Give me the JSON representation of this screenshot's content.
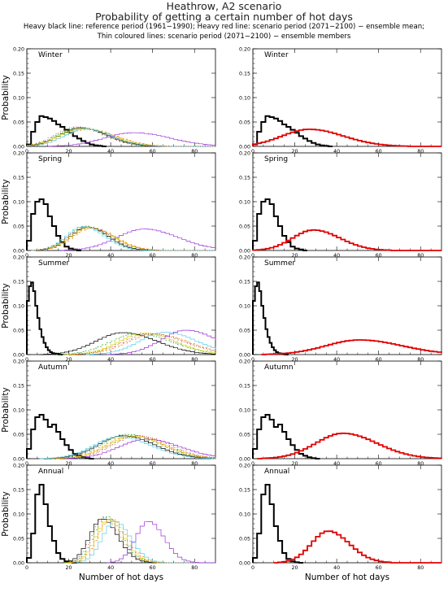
{
  "figure": {
    "site": "Heathrow, A2 scenario",
    "title": "Probability of getting a certain number of hot days",
    "note_line1": "Heavy black line: reference period (1961−1990); Heavy red line: scenario period (2071−2100) − ensemble mean;",
    "note_line2": "Thin coloured lines: scenario period (2071−2100) − ensemble members",
    "ylabel": "Probability",
    "xlabel": "Number of hot days",
    "xlim": [
      0,
      90
    ],
    "ylim": [
      0,
      0.2
    ],
    "xticks": [
      "0",
      "20",
      "40",
      "60",
      "80"
    ],
    "yticks": [
      "0.00",
      "0.05",
      "0.10",
      "0.15",
      "0.20"
    ],
    "member_colors": [
      "#000000",
      "#2ca02c",
      "#d4d400",
      "#ff7f0e",
      "#5ccfe6",
      "#8b1a1a",
      "#9b30d9"
    ],
    "reference_color": "#000000",
    "scenario_mean_color": "#e00000"
  },
  "chart_data": [
    {
      "type": "line",
      "panel": "winter-members",
      "label": "Winter",
      "series": [
        {
          "kind": "reference",
          "x": [
            0,
            2,
            4,
            6,
            8,
            10,
            12,
            14,
            16,
            18,
            20,
            22,
            24,
            26,
            28,
            30,
            32,
            34,
            36
          ],
          "y": [
            0.004,
            0.03,
            0.05,
            0.062,
            0.06,
            0.057,
            0.052,
            0.045,
            0.04,
            0.034,
            0.028,
            0.021,
            0.016,
            0.011,
            0.007,
            0.004,
            0.002,
            0.001,
            0
          ]
        },
        {
          "kind": "member",
          "peak": 25,
          "width": 10,
          "height": 0.038
        },
        {
          "kind": "member",
          "peak": 24,
          "width": 10,
          "height": 0.039
        },
        {
          "kind": "member",
          "peak": 26,
          "width": 11,
          "height": 0.037
        },
        {
          "kind": "member",
          "peak": 28,
          "width": 11,
          "height": 0.035
        },
        {
          "kind": "member",
          "peak": 27,
          "width": 10,
          "height": 0.036
        },
        {
          "kind": "member",
          "peak": 23,
          "width": 10,
          "height": 0.04
        },
        {
          "kind": "member",
          "peak": 50,
          "width": 14,
          "height": 0.028
        }
      ]
    },
    {
      "type": "line",
      "panel": "winter-mean",
      "label": "Winter",
      "series": [
        {
          "kind": "reference",
          "x": [
            0,
            2,
            4,
            6,
            8,
            10,
            12,
            14,
            16,
            18,
            20,
            22,
            24,
            26,
            28,
            30,
            32,
            34,
            36
          ],
          "y": [
            0.004,
            0.03,
            0.05,
            0.062,
            0.06,
            0.057,
            0.052,
            0.045,
            0.04,
            0.034,
            0.028,
            0.021,
            0.016,
            0.011,
            0.007,
            0.004,
            0.002,
            0.001,
            0
          ]
        },
        {
          "kind": "mean",
          "peak": 26,
          "width": 13,
          "height": 0.035
        }
      ]
    },
    {
      "type": "line",
      "panel": "spring-members",
      "label": "Spring",
      "series": [
        {
          "kind": "reference",
          "x": [
            0,
            2,
            4,
            6,
            8,
            10,
            12,
            14,
            16,
            18,
            20,
            22,
            24
          ],
          "y": [
            0.02,
            0.075,
            0.1,
            0.105,
            0.095,
            0.07,
            0.05,
            0.03,
            0.017,
            0.008,
            0.004,
            0.002,
            0
          ]
        },
        {
          "kind": "member",
          "peak": 28,
          "width": 8,
          "height": 0.048
        },
        {
          "kind": "member",
          "peak": 27,
          "width": 8,
          "height": 0.05
        },
        {
          "kind": "member",
          "peak": 29,
          "width": 9,
          "height": 0.047
        },
        {
          "kind": "member",
          "peak": 30,
          "width": 9,
          "height": 0.046
        },
        {
          "kind": "member",
          "peak": 26,
          "width": 8,
          "height": 0.049
        },
        {
          "kind": "member",
          "peak": 28,
          "width": 9,
          "height": 0.048
        },
        {
          "kind": "member",
          "peak": 55,
          "width": 13,
          "height": 0.044
        }
      ]
    },
    {
      "type": "line",
      "panel": "spring-mean",
      "label": "Spring",
      "series": [
        {
          "kind": "reference",
          "x": [
            0,
            2,
            4,
            6,
            8,
            10,
            12,
            14,
            16,
            18,
            20,
            22,
            24
          ],
          "y": [
            0.02,
            0.075,
            0.1,
            0.105,
            0.095,
            0.07,
            0.05,
            0.03,
            0.017,
            0.008,
            0.004,
            0.002,
            0
          ]
        },
        {
          "kind": "mean",
          "peak": 28,
          "width": 10,
          "height": 0.042
        }
      ]
    },
    {
      "type": "line",
      "panel": "summer-members",
      "label": "Summer",
      "series": [
        {
          "kind": "reference",
          "x": [
            0,
            1,
            2,
            3,
            4,
            5,
            6,
            7,
            8,
            9,
            10,
            11,
            12,
            13,
            14,
            15,
            16
          ],
          "y": [
            0.11,
            0.14,
            0.148,
            0.13,
            0.1,
            0.075,
            0.052,
            0.036,
            0.024,
            0.015,
            0.009,
            0.005,
            0.003,
            0.002,
            0.001,
            0.0005,
            0
          ]
        },
        {
          "kind": "member",
          "peak": 45,
          "width": 13,
          "height": 0.045
        },
        {
          "kind": "member",
          "peak": 52,
          "width": 13,
          "height": 0.043
        },
        {
          "kind": "member",
          "peak": 55,
          "width": 12,
          "height": 0.044
        },
        {
          "kind": "member",
          "peak": 60,
          "width": 13,
          "height": 0.042
        },
        {
          "kind": "member",
          "peak": 65,
          "width": 12,
          "height": 0.046
        },
        {
          "kind": "member",
          "peak": 58,
          "width": 13,
          "height": 0.043
        },
        {
          "kind": "member",
          "peak": 75,
          "width": 12,
          "height": 0.05
        }
      ]
    },
    {
      "type": "line",
      "panel": "summer-mean",
      "label": "Summer",
      "series": [
        {
          "kind": "reference",
          "x": [
            0,
            1,
            2,
            3,
            4,
            5,
            6,
            7,
            8,
            9,
            10,
            11,
            12,
            13,
            14,
            15,
            16
          ],
          "y": [
            0.11,
            0.14,
            0.148,
            0.13,
            0.1,
            0.075,
            0.052,
            0.036,
            0.024,
            0.015,
            0.009,
            0.005,
            0.003,
            0.002,
            0.001,
            0.0005,
            0
          ]
        },
        {
          "kind": "mean",
          "peak": 50,
          "width": 16,
          "height": 0.03
        }
      ]
    },
    {
      "type": "line",
      "panel": "autumn-members",
      "label": "Autumn",
      "series": [
        {
          "kind": "reference",
          "x": [
            0,
            2,
            4,
            6,
            8,
            10,
            12,
            14,
            16,
            18,
            20,
            22,
            24,
            26,
            28,
            30
          ],
          "y": [
            0.02,
            0.06,
            0.085,
            0.09,
            0.08,
            0.065,
            0.07,
            0.055,
            0.04,
            0.028,
            0.018,
            0.01,
            0.006,
            0.003,
            0.001,
            0
          ]
        },
        {
          "kind": "member",
          "peak": 45,
          "width": 12,
          "height": 0.047
        },
        {
          "kind": "member",
          "peak": 47,
          "width": 12,
          "height": 0.05
        },
        {
          "kind": "member",
          "peak": 50,
          "width": 12,
          "height": 0.046
        },
        {
          "kind": "member",
          "peak": 49,
          "width": 12,
          "height": 0.048
        },
        {
          "kind": "member",
          "peak": 43,
          "width": 12,
          "height": 0.045
        },
        {
          "kind": "member",
          "peak": 52,
          "width": 12,
          "height": 0.047
        },
        {
          "kind": "member",
          "peak": 56,
          "width": 13,
          "height": 0.04
        }
      ]
    },
    {
      "type": "line",
      "panel": "autumn-mean",
      "label": "Autumn",
      "series": [
        {
          "kind": "reference",
          "x": [
            0,
            2,
            4,
            6,
            8,
            10,
            12,
            14,
            16,
            18,
            20,
            22,
            24,
            26,
            28,
            30
          ],
          "y": [
            0.02,
            0.06,
            0.085,
            0.09,
            0.08,
            0.065,
            0.07,
            0.055,
            0.04,
            0.028,
            0.018,
            0.01,
            0.006,
            0.003,
            0.001,
            0
          ]
        },
        {
          "kind": "mean",
          "peak": 42,
          "width": 13,
          "height": 0.052
        }
      ]
    },
    {
      "type": "line",
      "panel": "annual-members",
      "label": "Annual",
      "series": [
        {
          "kind": "reference",
          "x": [
            0,
            2,
            4,
            6,
            8,
            10,
            12,
            14,
            16,
            18,
            20,
            22
          ],
          "y": [
            0.01,
            0.06,
            0.14,
            0.16,
            0.12,
            0.075,
            0.045,
            0.02,
            0.008,
            0.003,
            0.001,
            0
          ]
        },
        {
          "kind": "member",
          "peak": 35,
          "width": 6,
          "height": 0.09
        },
        {
          "kind": "member",
          "peak": 37,
          "width": 6,
          "height": 0.095
        },
        {
          "kind": "member",
          "peak": 38,
          "width": 6,
          "height": 0.088
        },
        {
          "kind": "member",
          "peak": 39,
          "width": 6,
          "height": 0.09
        },
        {
          "kind": "member",
          "peak": 41,
          "width": 6,
          "height": 0.085
        },
        {
          "kind": "member",
          "peak": 36,
          "width": 6,
          "height": 0.092
        },
        {
          "kind": "member",
          "peak": 57,
          "width": 6,
          "height": 0.085
        }
      ]
    },
    {
      "type": "line",
      "panel": "annual-mean",
      "label": "Annual",
      "series": [
        {
          "kind": "reference",
          "x": [
            0,
            2,
            4,
            6,
            8,
            10,
            12,
            14,
            16,
            18,
            20,
            22
          ],
          "y": [
            0.01,
            0.06,
            0.14,
            0.16,
            0.12,
            0.075,
            0.045,
            0.02,
            0.008,
            0.003,
            0.001,
            0
          ]
        },
        {
          "kind": "mean",
          "peak": 35,
          "width": 8,
          "height": 0.065
        }
      ]
    }
  ]
}
